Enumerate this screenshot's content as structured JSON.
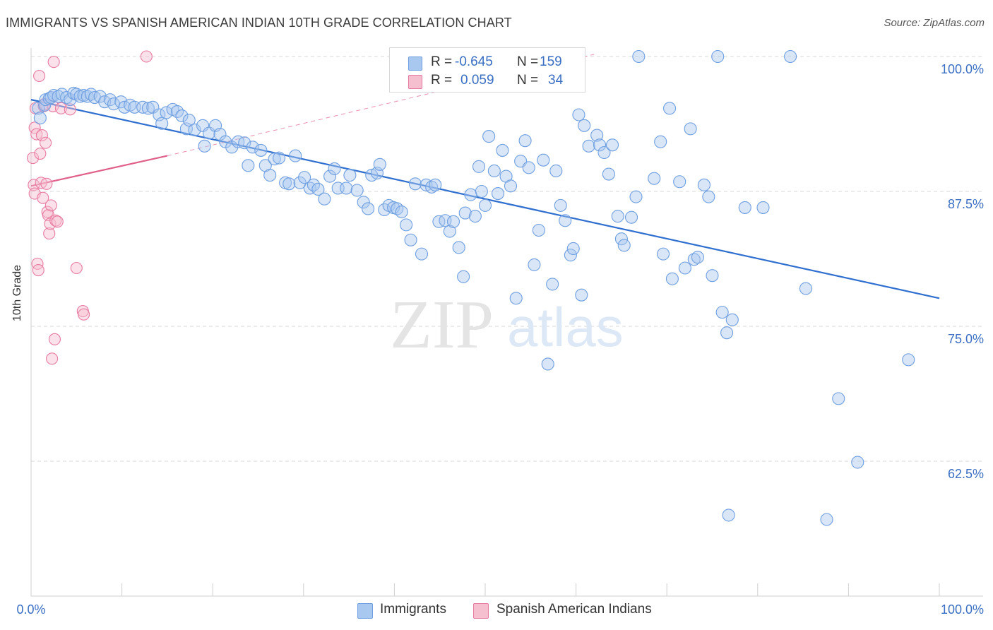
{
  "title": "IMMIGRANTS VS SPANISH AMERICAN INDIAN 10TH GRADE CORRELATION CHART",
  "source": "Source: ZipAtlas.com",
  "watermark": {
    "zip": "ZIP",
    "atlas": "atlas"
  },
  "colors": {
    "blue": "#6f9fe0",
    "blue_fill": "#a9c8f0",
    "blue_line": "#2f6fcf",
    "pink": "#e87aa0",
    "pink_fill": "#f6bfd0",
    "pink_line": "#e0608a",
    "axis_text": "#3a6fc4",
    "grid": "#d9d9d9"
  },
  "legend": {
    "rows": [
      {
        "r_label": "R =",
        "r_value": "-0.645",
        "n_label": "N =",
        "n_value": "159"
      },
      {
        "r_label": "R =",
        "r_value": "0.059",
        "n_label": "N =",
        "n_value": "34"
      }
    ]
  },
  "bottom_legend": {
    "immigrants": "Immigrants",
    "spanish": "Spanish American Indians"
  },
  "chart_data": {
    "type": "scatter",
    "title": "IMMIGRANTS VS SPANISH AMERICAN INDIAN 10TH GRADE CORRELATION CHART",
    "xlabel": "",
    "ylabel": "10th Grade",
    "xlim": [
      0,
      100
    ],
    "ylim": [
      52,
      101.5
    ],
    "x_tick_labels": [
      "0.0%",
      "100.0%"
    ],
    "y_ticks": [
      62.5,
      75.0,
      87.5,
      100.0
    ],
    "y_tick_labels": [
      "62.5%",
      "75.0%",
      "87.5%",
      "100.0%"
    ],
    "grid": true,
    "legend_position": "top-center",
    "series": [
      {
        "name": "Immigrants",
        "trend": [
          [
            0,
            96.0
          ],
          [
            100,
            77.6
          ]
        ],
        "points": [
          [
            0.8,
            95.2
          ],
          [
            1.0,
            94.3
          ],
          [
            1.5,
            95.5
          ],
          [
            1.6,
            96.0
          ],
          [
            2.0,
            96.1
          ],
          [
            2.2,
            96.2
          ],
          [
            2.5,
            96.4
          ],
          [
            3.0,
            96.3
          ],
          [
            3.4,
            96.5
          ],
          [
            3.9,
            96.2
          ],
          [
            4.3,
            96.0
          ],
          [
            4.7,
            96.6
          ],
          [
            5.0,
            96.5
          ],
          [
            5.4,
            96.3
          ],
          [
            5.8,
            96.4
          ],
          [
            6.2,
            96.3
          ],
          [
            6.6,
            96.5
          ],
          [
            7.0,
            96.2
          ],
          [
            7.6,
            96.3
          ],
          [
            8.1,
            95.8
          ],
          [
            8.7,
            96.0
          ],
          [
            9.1,
            95.6
          ],
          [
            9.9,
            95.8
          ],
          [
            10.3,
            95.3
          ],
          [
            10.9,
            95.5
          ],
          [
            11.4,
            95.3
          ],
          [
            12.3,
            95.3
          ],
          [
            12.9,
            95.2
          ],
          [
            13.4,
            95.3
          ],
          [
            14.1,
            94.6
          ],
          [
            14.4,
            93.8
          ],
          [
            14.9,
            94.8
          ],
          [
            15.6,
            95.1
          ],
          [
            16.1,
            94.9
          ],
          [
            16.6,
            94.5
          ],
          [
            17.1,
            93.3
          ],
          [
            17.4,
            94.1
          ],
          [
            18.0,
            93.2
          ],
          [
            18.9,
            93.6
          ],
          [
            19.6,
            92.9
          ],
          [
            19.1,
            91.7
          ],
          [
            20.3,
            93.6
          ],
          [
            20.8,
            92.8
          ],
          [
            21.4,
            92.1
          ],
          [
            22.1,
            91.6
          ],
          [
            22.8,
            92.1
          ],
          [
            23.5,
            92.0
          ],
          [
            24.4,
            91.6
          ],
          [
            25.3,
            91.3
          ],
          [
            23.9,
            89.9
          ],
          [
            25.8,
            89.9
          ],
          [
            26.3,
            89.0
          ],
          [
            26.8,
            90.5
          ],
          [
            27.3,
            90.6
          ],
          [
            28.0,
            88.3
          ],
          [
            28.4,
            88.2
          ],
          [
            29.1,
            90.8
          ],
          [
            29.6,
            88.3
          ],
          [
            30.1,
            88.8
          ],
          [
            30.7,
            87.8
          ],
          [
            31.1,
            88.1
          ],
          [
            31.6,
            87.7
          ],
          [
            32.3,
            86.8
          ],
          [
            32.9,
            88.9
          ],
          [
            33.4,
            89.6
          ],
          [
            33.8,
            87.8
          ],
          [
            34.7,
            87.8
          ],
          [
            35.1,
            89.0
          ],
          [
            35.9,
            87.6
          ],
          [
            36.6,
            86.5
          ],
          [
            37.1,
            85.9
          ],
          [
            37.5,
            89.0
          ],
          [
            38.1,
            89.2
          ],
          [
            38.4,
            90.0
          ],
          [
            38.9,
            85.8
          ],
          [
            39.4,
            86.2
          ],
          [
            39.9,
            86.0
          ],
          [
            40.3,
            85.9
          ],
          [
            40.8,
            85.6
          ],
          [
            41.3,
            84.4
          ],
          [
            41.8,
            83.0
          ],
          [
            42.3,
            88.2
          ],
          [
            43.0,
            81.7
          ],
          [
            43.5,
            88.1
          ],
          [
            44.1,
            87.9
          ],
          [
            44.5,
            88.1
          ],
          [
            44.9,
            84.7
          ],
          [
            45.6,
            84.8
          ],
          [
            46.1,
            83.8
          ],
          [
            46.5,
            84.7
          ],
          [
            47.1,
            82.3
          ],
          [
            47.6,
            79.6
          ],
          [
            47.8,
            85.5
          ],
          [
            48.4,
            87.2
          ],
          [
            48.9,
            85.2
          ],
          [
            49.3,
            89.8
          ],
          [
            49.6,
            87.5
          ],
          [
            50.0,
            86.2
          ],
          [
            50.4,
            92.6
          ],
          [
            51.0,
            89.4
          ],
          [
            51.4,
            87.3
          ],
          [
            51.9,
            91.3
          ],
          [
            52.3,
            88.9
          ],
          [
            52.8,
            88.0
          ],
          [
            53.4,
            77.6
          ],
          [
            53.9,
            90.3
          ],
          [
            54.4,
            92.2
          ],
          [
            54.8,
            89.7
          ],
          [
            55.4,
            80.7
          ],
          [
            55.9,
            83.9
          ],
          [
            56.4,
            90.4
          ],
          [
            56.9,
            71.5
          ],
          [
            57.4,
            78.9
          ],
          [
            57.8,
            89.4
          ],
          [
            58.3,
            86.2
          ],
          [
            58.8,
            84.8
          ],
          [
            59.4,
            81.6
          ],
          [
            59.7,
            82.2
          ],
          [
            60.3,
            94.6
          ],
          [
            60.6,
            77.9
          ],
          [
            60.9,
            93.6
          ],
          [
            61.4,
            91.7
          ],
          [
            62.3,
            92.7
          ],
          [
            62.6,
            91.8
          ],
          [
            63.1,
            91.1
          ],
          [
            63.6,
            89.1
          ],
          [
            64.0,
            91.8
          ],
          [
            64.6,
            85.2
          ],
          [
            65.0,
            83.1
          ],
          [
            65.3,
            82.5
          ],
          [
            66.1,
            85.1
          ],
          [
            66.6,
            87.0
          ],
          [
            66.9,
            100.0
          ],
          [
            68.6,
            88.7
          ],
          [
            69.3,
            92.1
          ],
          [
            69.6,
            81.7
          ],
          [
            70.3,
            95.2
          ],
          [
            70.6,
            79.4
          ],
          [
            71.4,
            88.4
          ],
          [
            72.0,
            80.4
          ],
          [
            72.6,
            93.3
          ],
          [
            73.0,
            81.2
          ],
          [
            73.4,
            81.4
          ],
          [
            74.1,
            88.1
          ],
          [
            74.6,
            87.0
          ],
          [
            75.0,
            79.7
          ],
          [
            75.6,
            100.0
          ],
          [
            76.1,
            76.3
          ],
          [
            76.6,
            74.4
          ],
          [
            77.2,
            75.6
          ],
          [
            78.6,
            86.0
          ],
          [
            80.6,
            86.0
          ],
          [
            83.6,
            100.0
          ],
          [
            85.3,
            78.5
          ],
          [
            88.9,
            68.3
          ],
          [
            96.6,
            71.9
          ],
          [
            76.8,
            57.5
          ],
          [
            87.6,
            57.1
          ],
          [
            91.0,
            62.4
          ]
        ]
      },
      {
        "name": "Spanish American Indians",
        "trend": [
          [
            0,
            88.0
          ],
          [
            15,
            90.8
          ]
        ],
        "trend_dashed": [
          [
            15,
            90.8
          ],
          [
            62,
            100.2
          ]
        ],
        "points": [
          [
            0.2,
            90.6
          ],
          [
            0.3,
            88.1
          ],
          [
            0.4,
            87.3
          ],
          [
            0.4,
            93.4
          ],
          [
            0.5,
            95.2
          ],
          [
            0.6,
            92.8
          ],
          [
            0.7,
            80.8
          ],
          [
            0.8,
            80.2
          ],
          [
            0.9,
            98.2
          ],
          [
            1.0,
            91.0
          ],
          [
            1.1,
            88.3
          ],
          [
            1.2,
            92.7
          ],
          [
            1.3,
            86.9
          ],
          [
            1.4,
            95.4
          ],
          [
            1.5,
            95.6
          ],
          [
            1.6,
            92.0
          ],
          [
            1.7,
            88.2
          ],
          [
            1.8,
            85.6
          ],
          [
            1.9,
            85.3
          ],
          [
            2.0,
            83.6
          ],
          [
            2.1,
            84.5
          ],
          [
            2.2,
            86.2
          ],
          [
            2.3,
            72.0
          ],
          [
            2.4,
            95.4
          ],
          [
            2.5,
            99.5
          ],
          [
            2.6,
            73.8
          ],
          [
            2.7,
            84.8
          ],
          [
            2.9,
            84.7
          ],
          [
            3.3,
            95.2
          ],
          [
            4.3,
            95.1
          ],
          [
            5.0,
            80.4
          ],
          [
            5.7,
            76.4
          ],
          [
            5.8,
            76.1
          ],
          [
            12.7,
            100.0
          ]
        ]
      }
    ]
  }
}
